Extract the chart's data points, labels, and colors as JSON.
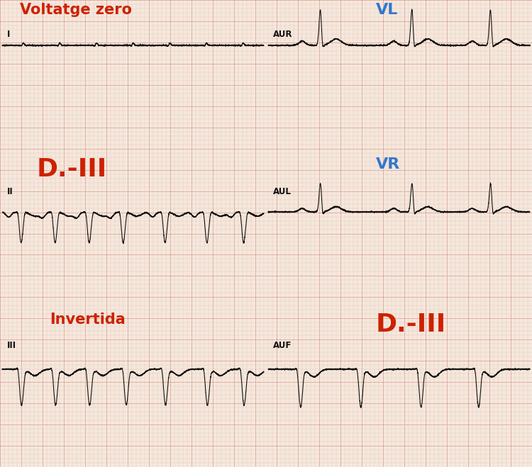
{
  "bg_color": "#f5e8dd",
  "grid_major_color": "#cc7766",
  "grid_minor_color": "#dda898",
  "ecg_color": "#111111",
  "title_row1_label": "Voltatge zero",
  "title_row1_color": "#cc2200",
  "title_row2_label": "D.-III",
  "title_row2_color": "#cc2200",
  "title_row3_label": "Invertida",
  "title_row3_color": "#cc2200",
  "label_I": "I",
  "label_II": "II",
  "label_III": "III",
  "label_AUR": "AUR",
  "label_AUL": "AUL",
  "label_AUF": "AUF",
  "label_VL": "VL",
  "label_VL_color": "#3377cc",
  "label_VR": "VR",
  "label_VR_color": "#3377cc",
  "label_DIII_row3": "D.-III",
  "label_DIII_row3_color": "#cc2200",
  "fig_width": 7.5,
  "fig_height": 6.59,
  "dpi": 100
}
